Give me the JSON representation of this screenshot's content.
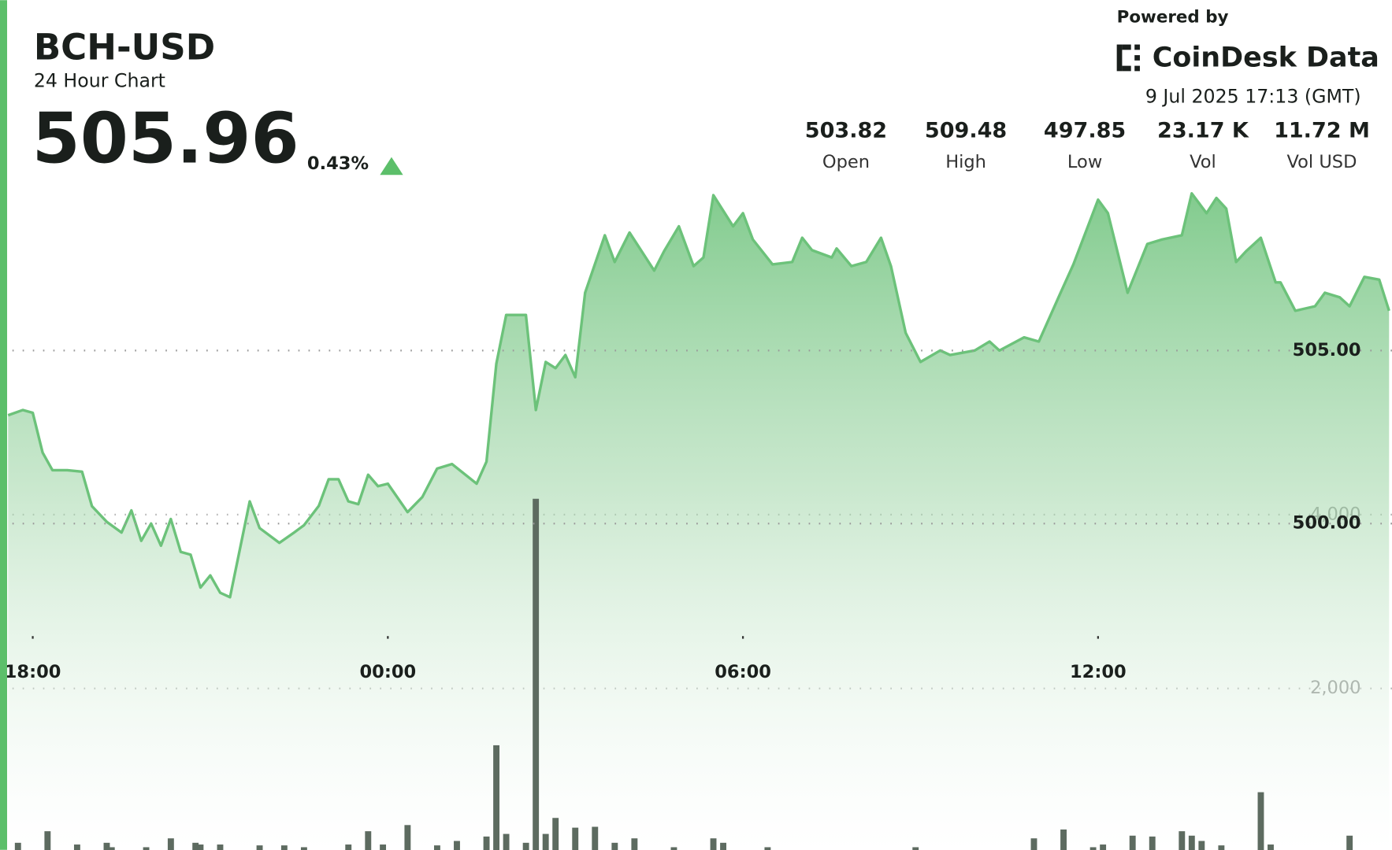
{
  "header": {
    "symbol": "BCH-USD",
    "subtitle": "24 Hour Chart",
    "price": "505.96",
    "change": "0.43%",
    "powered_by": "Powered by",
    "brand": "CoinDesk Data",
    "timestamp": "9 Jul 2025 17:13 (GMT)",
    "stats": [
      {
        "value": "503.82",
        "label": "Open"
      },
      {
        "value": "509.48",
        "label": "High"
      },
      {
        "value": "497.85",
        "label": "Low"
      },
      {
        "value": "23.17 K",
        "label": "Vol"
      },
      {
        "value": "11.72 M",
        "label": "Vol USD"
      }
    ]
  },
  "chart_data": {
    "type": "area",
    "xlim": [
      "17:34",
      "16:58"
    ],
    "xticks": [
      "18:00",
      "00:00",
      "06:00",
      "12:00"
    ],
    "ylim": [
      490.21,
      510
    ],
    "yticks": [
      {
        "value": 500,
        "label": "500.00"
      },
      {
        "value": 505,
        "label": "505.00"
      }
    ],
    "y2lim": [
      0,
      7878
    ],
    "y2ticks": [
      {
        "value": 2000,
        "label": "2,000"
      },
      {
        "value": 4000,
        "label": "4,000"
      }
    ],
    "grid": true,
    "series": [
      {
        "color": "#6cc27a",
        "x": [
          "17:35",
          "17:50",
          "18:00",
          "18:10",
          "18:20",
          "18:35",
          "18:50",
          "19:00",
          "19:15",
          "19:30",
          "19:40",
          "19:50",
          "20:00",
          "20:10",
          "20:20",
          "20:30",
          "20:40",
          "20:50",
          "21:00",
          "21:10",
          "21:20",
          "21:40",
          "21:50",
          "22:10",
          "22:25",
          "22:35",
          "22:50",
          "23:00",
          "23:10",
          "23:20",
          "23:30",
          "23:40",
          "23:50",
          "00:00",
          "00:20",
          "00:35",
          "00:50",
          "01:05",
          "01:30",
          "01:40",
          "01:50",
          "02:00",
          "02:20",
          "02:30",
          "02:40",
          "02:50",
          "03:00",
          "03:10",
          "03:20",
          "03:40",
          "03:50",
          "04:05",
          "04:30",
          "04:40",
          "04:55",
          "05:10",
          "05:20",
          "05:30",
          "05:50",
          "06:00",
          "06:10",
          "06:30",
          "06:50",
          "07:00",
          "07:10",
          "07:30",
          "07:35",
          "07:50",
          "08:05",
          "08:20",
          "08:30",
          "08:45",
          "09:00",
          "09:20",
          "09:30",
          "09:55",
          "10:10",
          "10:20",
          "10:45",
          "11:00",
          "11:20",
          "11:35",
          "12:00",
          "12:10",
          "12:30",
          "12:50",
          "13:05",
          "13:25",
          "13:35",
          "13:50",
          "14:00",
          "14:10",
          "14:20",
          "14:30",
          "14:45",
          "15:00",
          "15:05",
          "15:20",
          "15:40",
          "15:50",
          "16:05",
          "16:15",
          "16:30",
          "16:45",
          "16:55"
        ],
        "values": [
          503.13,
          503.28,
          503.2,
          502.05,
          501.54,
          501.54,
          501.5,
          500.5,
          500.05,
          499.74,
          500.38,
          499.5,
          500,
          499.36,
          500.13,
          499.18,
          499.1,
          498.15,
          498.5,
          498,
          497.87,
          500.64,
          499.87,
          499.44,
          499.74,
          499.95,
          500.51,
          501.28,
          501.28,
          500.64,
          500.56,
          501.41,
          501.08,
          501.15,
          500.33,
          500.77,
          501.59,
          501.72,
          501.15,
          501.79,
          504.62,
          506.03,
          506.03,
          503.28,
          504.67,
          504.49,
          504.87,
          504.23,
          506.67,
          508.33,
          507.56,
          508.41,
          507.31,
          507.87,
          508.59,
          507.44,
          507.69,
          509.49,
          508.59,
          508.97,
          508.21,
          507.49,
          507.56,
          508.26,
          507.9,
          507.69,
          507.95,
          507.44,
          507.56,
          508.26,
          507.44,
          505.51,
          504.67,
          505,
          504.87,
          505,
          505.26,
          505,
          505.38,
          505.26,
          506.54,
          507.49,
          509.36,
          508.97,
          506.67,
          508.08,
          508.21,
          508.33,
          509.54,
          508.97,
          509.41,
          509.1,
          507.56,
          507.87,
          508.26,
          506.97,
          506.97,
          506.15,
          506.28,
          506.67,
          506.54,
          506.28,
          507.13,
          507.05,
          506.15
        ]
      },
      {
        "type": "bar",
        "axis": "y2",
        "color": "#5d6b60",
        "x": [
          "17:45",
          "18:15",
          "18:45",
          "19:15",
          "19:20",
          "19:55",
          "20:20",
          "20:45",
          "20:50",
          "21:10",
          "21:50",
          "22:15",
          "22:35",
          "23:20",
          "23:40",
          "23:55",
          "00:20",
          "00:50",
          "01:10",
          "01:40",
          "01:50",
          "02:00",
          "02:20",
          "02:30",
          "02:40",
          "02:50",
          "03:10",
          "03:30",
          "03:50",
          "04:10",
          "04:50",
          "05:30",
          "05:40",
          "06:25",
          "08:55",
          "10:55",
          "11:25",
          "11:55",
          "12:05",
          "12:35",
          "12:55",
          "13:25",
          "13:35",
          "13:45",
          "14:05",
          "14:45",
          "14:55",
          "16:15"
        ],
        "values": [
          224,
          357,
          204,
          224,
          173,
          173,
          275,
          224,
          204,
          204,
          194,
          194,
          173,
          204,
          357,
          204,
          428,
          194,
          245,
          296,
          1346,
          326,
          224,
          4182,
          326,
          510,
          398,
          408,
          224,
          275,
          173,
          275,
          224,
          173,
          173,
          275,
          377,
          173,
          204,
          306,
          296,
          357,
          306,
          245,
          194,
          806,
          204,
          306
        ]
      }
    ]
  }
}
